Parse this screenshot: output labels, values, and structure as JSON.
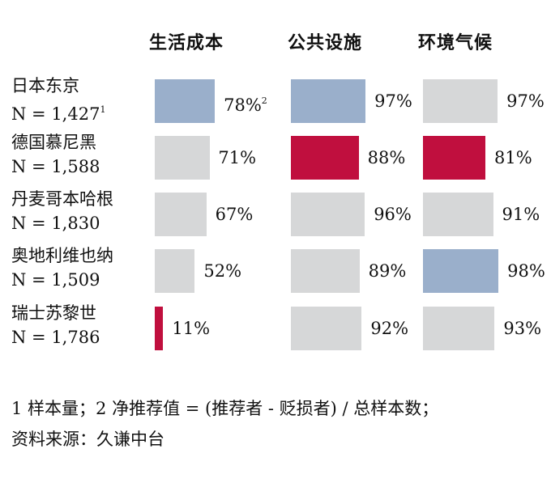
{
  "chart_data": {
    "type": "bar",
    "title": "",
    "xlabel": "",
    "ylabel": "",
    "xlim": [
      0,
      100
    ],
    "categories": [
      {
        "name": "日本东京",
        "n_label": "N = 1,427",
        "n_note": "1"
      },
      {
        "name": "德国慕尼黑",
        "n_label": "N = 1,588",
        "n_note": ""
      },
      {
        "name": "丹麦哥本哈根",
        "n_label": "N = 1,830",
        "n_note": ""
      },
      {
        "name": "奥地利维也纳",
        "n_label": "N = 1,509",
        "n_note": ""
      },
      {
        "name": "瑞士苏黎世",
        "n_label": "N = 1,786",
        "n_note": ""
      }
    ],
    "series": [
      {
        "name": "生活成本",
        "values": [
          78,
          71,
          67,
          52,
          11
        ],
        "labels": [
          "78%",
          "71%",
          "67%",
          "52%",
          "11%"
        ],
        "label_notes": [
          "2",
          "",
          "",
          "",
          ""
        ],
        "highlight": [
          "best",
          "none",
          "none",
          "none",
          "worst"
        ]
      },
      {
        "name": "公共设施",
        "values": [
          97,
          88,
          96,
          89,
          92
        ],
        "labels": [
          "97%",
          "88%",
          "96%",
          "89%",
          "92%"
        ],
        "label_notes": [
          "",
          "",
          "",
          "",
          ""
        ],
        "highlight": [
          "best",
          "worst",
          "none",
          "none",
          "none"
        ]
      },
      {
        "name": "环境气候",
        "values": [
          97,
          81,
          91,
          98,
          93
        ],
        "labels": [
          "97%",
          "81%",
          "91%",
          "98%",
          "93%"
        ],
        "label_notes": [
          "",
          "",
          "",
          "",
          ""
        ],
        "highlight": [
          "none",
          "worst",
          "none",
          "best",
          "none"
        ]
      }
    ],
    "colors": {
      "best": "#9aafcb",
      "worst": "#c00f3e",
      "none": "#d6d7d8"
    }
  },
  "footnotes": [
    "1 样本量；2 净推荐值 = (推荐者 - 贬损者) / 总样本数；",
    "资料来源：久谦中台"
  ]
}
